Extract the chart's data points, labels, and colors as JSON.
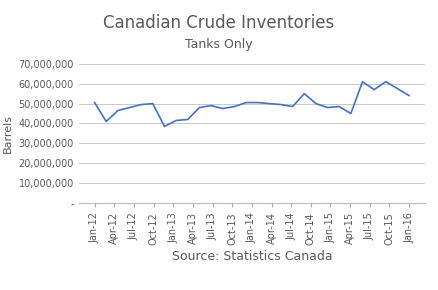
{
  "title": "Canadian Crude Inventories",
  "subtitle": "Tanks Only",
  "xlabel": "Source: Statistics Canada",
  "ylabel": "Barrels",
  "line_color": "#4472C4",
  "background_color": "#FFFFFF",
  "grid_color": "#C8C8C8",
  "ylim": [
    0,
    70000000
  ],
  "yticks": [
    0,
    10000000,
    20000000,
    30000000,
    40000000,
    50000000,
    60000000,
    70000000
  ],
  "x_labels": [
    "Jan-12",
    "Apr-12",
    "Jul-12",
    "Oct-12",
    "Jan-13",
    "Apr-13",
    "Jul-13",
    "Oct-13",
    "Jan-14",
    "Apr-14",
    "Jul-14",
    "Oct-14",
    "Jan-15",
    "Apr-15",
    "Jul-15",
    "Oct-15",
    "Jan-16"
  ],
  "values": [
    50500000,
    41000000,
    46500000,
    48000000,
    49500000,
    50000000,
    38500000,
    41500000,
    42000000,
    48000000,
    49000000,
    47500000,
    48500000,
    50500000,
    50500000,
    50000000,
    49500000,
    48500000,
    55000000,
    50000000,
    48000000,
    48500000,
    45000000,
    61000000,
    57000000,
    61000000,
    57500000,
    54000000
  ],
  "n_points": 28,
  "title_fontsize": 12,
  "subtitle_fontsize": 9,
  "axis_label_fontsize": 8,
  "tick_fontsize": 7,
  "text_color": "#595959"
}
